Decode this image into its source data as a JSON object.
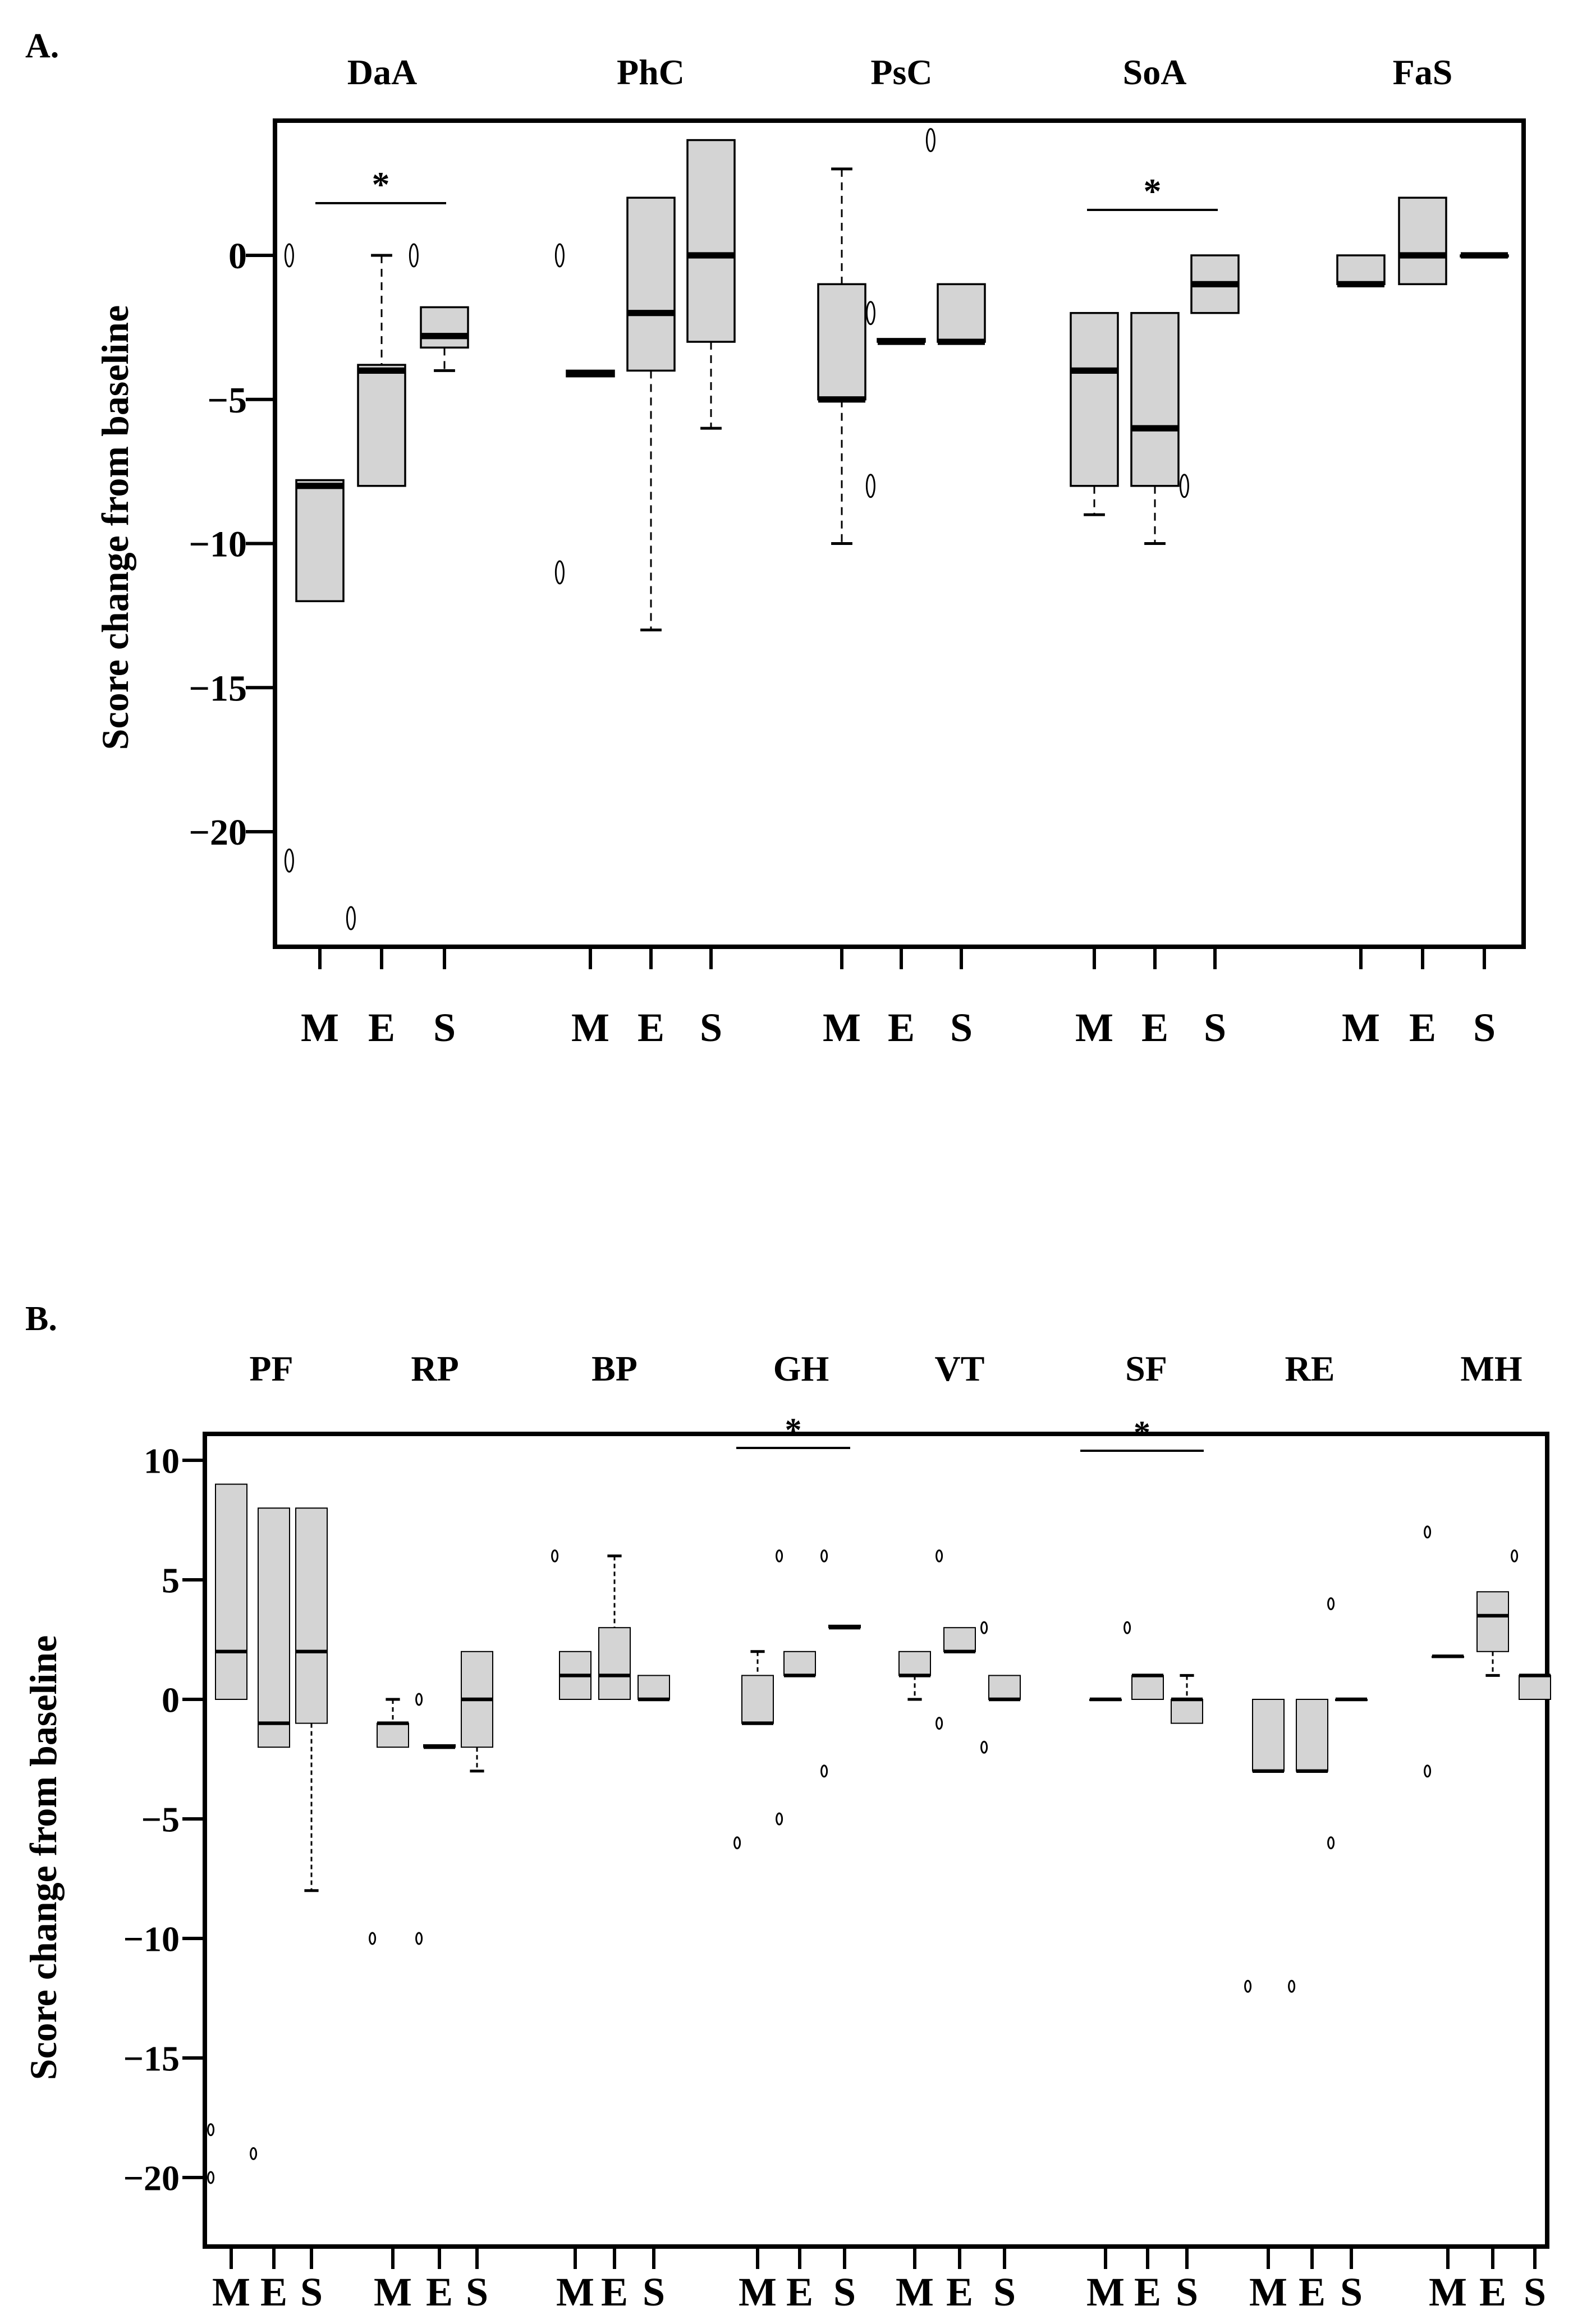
{
  "chart_data": [
    {
      "panel_label": "A.",
      "type": "box",
      "ylabel": "Score change from baseline",
      "ylim": [
        -23.5,
        4.5
      ],
      "yticks": [
        0,
        -5,
        -10,
        -15,
        -20
      ],
      "ytick_labels": [
        "0",
        "−5",
        "−10",
        "−15",
        "−20"
      ],
      "group_tick_labels": [
        "M",
        "E",
        "S"
      ],
      "colors": {
        "box_fill": "#d4d4d4",
        "stroke": "#000000"
      },
      "groups": [
        {
          "name": "DaA",
          "significance": "*",
          "boxes": [
            {
              "cat": "M",
              "q1": -12,
              "median": -8,
              "q3": -7.8,
              "whisker_low": -12,
              "whisker_high": -7.8,
              "outliers": [
                0,
                -21
              ]
            },
            {
              "cat": "E",
              "q1": -8,
              "median": -4,
              "q3": -3.8,
              "whisker_low": -8,
              "whisker_high": 0,
              "outliers": [
                -23
              ]
            },
            {
              "cat": "S",
              "q1": -3.2,
              "median": -2.8,
              "q3": -1.8,
              "whisker_low": -4,
              "whisker_high": -1.8,
              "outliers": [
                0
              ]
            }
          ]
        },
        {
          "name": "PhC",
          "significance": "",
          "boxes": [
            {
              "cat": "M",
              "q1": -4.2,
              "median": -4.1,
              "q3": -4,
              "whisker_low": -4.2,
              "whisker_high": -4,
              "outliers": [
                0,
                -11
              ]
            },
            {
              "cat": "E",
              "q1": -4,
              "median": -2,
              "q3": 2,
              "whisker_low": -13,
              "whisker_high": 2,
              "outliers": []
            },
            {
              "cat": "S",
              "q1": -3,
              "median": 0,
              "q3": 4,
              "whisker_low": -6,
              "whisker_high": 4,
              "outliers": []
            }
          ]
        },
        {
          "name": "PsC",
          "significance": "",
          "boxes": [
            {
              "cat": "M",
              "q1": -5,
              "median": -5,
              "q3": -1,
              "whisker_low": -10,
              "whisker_high": 3,
              "outliers": []
            },
            {
              "cat": "E",
              "q1": -3,
              "median": -3,
              "q3": -2.9,
              "whisker_low": -3,
              "whisker_high": -2.9,
              "outliers": [
                -2,
                -8
              ]
            },
            {
              "cat": "S",
              "q1": -3,
              "median": -3,
              "q3": -1,
              "whisker_low": -3,
              "whisker_high": -1,
              "outliers": [
                4
              ]
            }
          ]
        },
        {
          "name": "SoA",
          "significance": "*",
          "boxes": [
            {
              "cat": "M",
              "q1": -8,
              "median": -4,
              "q3": -2,
              "whisker_low": -9,
              "whisker_high": -2,
              "outliers": []
            },
            {
              "cat": "E",
              "q1": -8,
              "median": -6,
              "q3": -2,
              "whisker_low": -10,
              "whisker_high": -2,
              "outliers": []
            },
            {
              "cat": "S",
              "q1": -2,
              "median": -1,
              "q3": 0,
              "whisker_low": -2,
              "whisker_high": 0,
              "outliers": [
                -8
              ]
            }
          ]
        },
        {
          "name": "FaS",
          "significance": "",
          "boxes": [
            {
              "cat": "M",
              "q1": -1,
              "median": -1,
              "q3": 0,
              "whisker_low": -1,
              "whisker_high": 0,
              "outliers": []
            },
            {
              "cat": "E",
              "q1": -1,
              "median": 0,
              "q3": 2,
              "whisker_low": -1,
              "whisker_high": 2,
              "outliers": []
            },
            {
              "cat": "S",
              "q1": 0,
              "median": 0,
              "q3": 0,
              "whisker_low": 0,
              "whisker_high": 0,
              "outliers": []
            }
          ]
        }
      ]
    },
    {
      "panel_label": "B.",
      "type": "box",
      "ylabel": "Score change from baseline",
      "ylim": [
        -22.5,
        10.2
      ],
      "yticks": [
        10,
        5,
        0,
        -5,
        -10,
        -15,
        -20
      ],
      "ytick_labels": [
        "10",
        "5",
        "0",
        "−5",
        "−10",
        "−15",
        "−20"
      ],
      "group_tick_labels": [
        "M",
        "E",
        "S"
      ],
      "colors": {
        "box_fill": "#d4d4d4",
        "stroke": "#000000"
      },
      "groups": [
        {
          "name": "PF",
          "significance": "",
          "boxes": [
            {
              "cat": "M",
              "q1": 0,
              "median": 2,
              "q3": 9,
              "whisker_low": 0,
              "whisker_high": 9,
              "outliers": [
                -18,
                -20
              ]
            },
            {
              "cat": "E",
              "q1": -2,
              "median": -1,
              "q3": 8,
              "whisker_low": -2,
              "whisker_high": 8,
              "outliers": [
                -19
              ]
            },
            {
              "cat": "S",
              "q1": -1,
              "median": 2,
              "q3": 8,
              "whisker_low": -8,
              "whisker_high": 8,
              "outliers": []
            }
          ]
        },
        {
          "name": "RP",
          "significance": "",
          "boxes": [
            {
              "cat": "M",
              "q1": -2,
              "median": -1,
              "q3": -1,
              "whisker_low": -2,
              "whisker_high": 0,
              "outliers": [
                -10
              ]
            },
            {
              "cat": "E",
              "q1": -2,
              "median": -2,
              "q3": -1.9,
              "whisker_low": -2,
              "whisker_high": -1.9,
              "outliers": [
                0,
                -10
              ]
            },
            {
              "cat": "S",
              "q1": -2,
              "median": 0,
              "q3": 2,
              "whisker_low": -3,
              "whisker_high": 2,
              "outliers": []
            }
          ]
        },
        {
          "name": "BP",
          "significance": "",
          "boxes": [
            {
              "cat": "M",
              "q1": 0,
              "median": 1,
              "q3": 2,
              "whisker_low": 0,
              "whisker_high": 2,
              "outliers": [
                6
              ]
            },
            {
              "cat": "E",
              "q1": 0,
              "median": 1,
              "q3": 3,
              "whisker_low": 0,
              "whisker_high": 6,
              "outliers": []
            },
            {
              "cat": "S",
              "q1": 0,
              "median": 0,
              "q3": 1,
              "whisker_low": 0,
              "whisker_high": 1,
              "outliers": []
            }
          ]
        },
        {
          "name": "GH",
          "significance": "*",
          "boxes": [
            {
              "cat": "M",
              "q1": -1,
              "median": -1,
              "q3": 1,
              "whisker_low": -1,
              "whisker_high": 2,
              "outliers": [
                -6
              ]
            },
            {
              "cat": "E",
              "q1": 1,
              "median": 1,
              "q3": 2,
              "whisker_low": 1,
              "whisker_high": 2,
              "outliers": [
                6,
                -5
              ]
            },
            {
              "cat": "S",
              "q1": 3,
              "median": 3,
              "q3": 3.1,
              "whisker_low": 3,
              "whisker_high": 3.1,
              "outliers": [
                6,
                -3
              ]
            }
          ]
        },
        {
          "name": "VT",
          "significance": "",
          "boxes": [
            {
              "cat": "M",
              "q1": 1,
              "median": 1,
              "q3": 2,
              "whisker_low": 0,
              "whisker_high": 2,
              "outliers": []
            },
            {
              "cat": "E",
              "q1": 2,
              "median": 2,
              "q3": 3,
              "whisker_low": 2,
              "whisker_high": 3,
              "outliers": [
                6,
                -1
              ]
            },
            {
              "cat": "S",
              "q1": 0,
              "median": 0,
              "q3": 1,
              "whisker_low": 0,
              "whisker_high": 1,
              "outliers": [
                3,
                -2
              ]
            }
          ]
        },
        {
          "name": "SF",
          "significance": "*",
          "boxes": [
            {
              "cat": "M",
              "q1": 0,
              "median": 0,
              "q3": 0,
              "whisker_low": 0,
              "whisker_high": 0,
              "outliers": []
            },
            {
              "cat": "E",
              "q1": 0,
              "median": 1,
              "q3": 1,
              "whisker_low": 0,
              "whisker_high": 1,
              "outliers": [
                3
              ]
            },
            {
              "cat": "S",
              "q1": -1,
              "median": 0,
              "q3": 0,
              "whisker_low": -1,
              "whisker_high": 1,
              "outliers": []
            }
          ]
        },
        {
          "name": "RE",
          "significance": "",
          "boxes": [
            {
              "cat": "M",
              "q1": -3,
              "median": -3,
              "q3": 0,
              "whisker_low": -3,
              "whisker_high": 0,
              "outliers": [
                -12
              ]
            },
            {
              "cat": "E",
              "q1": -3,
              "median": -3,
              "q3": 0,
              "whisker_low": -3,
              "whisker_high": 0,
              "outliers": [
                -12
              ]
            },
            {
              "cat": "S",
              "q1": 0,
              "median": 0,
              "q3": 0,
              "whisker_low": 0,
              "whisker_high": 0,
              "outliers": [
                4,
                -6
              ]
            }
          ]
        },
        {
          "name": "MH",
          "significance": "",
          "boxes": [
            {
              "cat": "M",
              "q1": 1.8,
              "median": 1.8,
              "q3": 1.8,
              "whisker_low": 1.8,
              "whisker_high": 1.8,
              "outliers": [
                7,
                -3
              ]
            },
            {
              "cat": "E",
              "q1": 2,
              "median": 3.5,
              "q3": 4.5,
              "whisker_low": 1,
              "whisker_high": 4.5,
              "outliers": []
            },
            {
              "cat": "S",
              "q1": 0,
              "median": 1,
              "q3": 1,
              "whisker_low": 0,
              "whisker_high": 1,
              "outliers": [
                6
              ]
            }
          ]
        }
      ]
    }
  ]
}
